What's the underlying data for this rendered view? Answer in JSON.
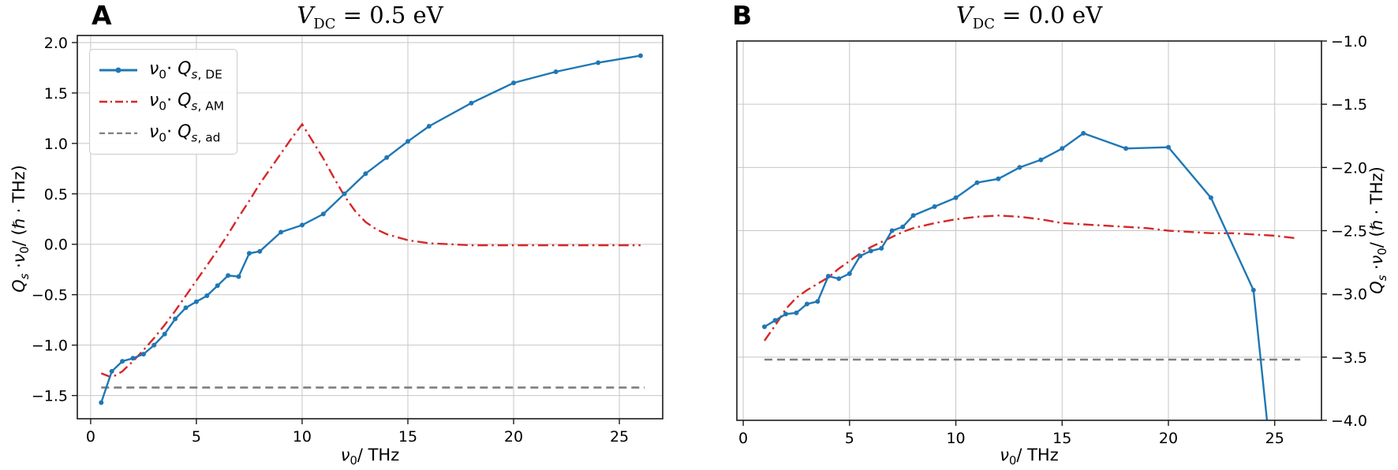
{
  "figure": {
    "panel_a": {
      "panel_letter": "A",
      "title": {
        "italic": "V",
        "sub": "DC",
        "rest": " = 0.5 eV"
      },
      "xlabel": {
        "nu": "ν",
        "sub": "0",
        "rest": "/ THz"
      },
      "ylabel": {
        "q": "Q",
        "q_sub": "s",
        "mid": " ·",
        "nu": "ν",
        "nu_sub": "0",
        "rest": "/ (ℏ · THz)"
      }
    },
    "panel_b": {
      "panel_letter": "B",
      "title": {
        "italic": "V",
        "sub": "DC",
        "rest": " = 0.0 eV"
      },
      "xlabel": {
        "nu": "ν",
        "sub": "0",
        "rest": "/ THz"
      },
      "ylabel": {
        "q": "Q",
        "q_sub": "s",
        "mid": " ·",
        "nu": "ν",
        "nu_sub": "0",
        "rest": "/ (ℏ · THz)"
      }
    },
    "legend": {
      "items": [
        {
          "nu": "ν",
          "nu_sub": "0",
          "dot": "· ",
          "q": "Q",
          "q_sub_italic": "s",
          "q_sub_roman": ", DE"
        },
        {
          "nu": "ν",
          "nu_sub": "0",
          "dot": "· ",
          "q": "Q",
          "q_sub_italic": "s",
          "q_sub_roman": ", AM"
        },
        {
          "nu": "ν",
          "nu_sub": "0",
          "dot": "· ",
          "q": "Q",
          "q_sub_italic": "s",
          "q_sub_roman": ", ad"
        }
      ]
    },
    "colors": {
      "blue": "#1f77b4",
      "red": "#d62728",
      "gray": "#7f7f7f",
      "grid": "#c6c6c6",
      "spine": "#1a1a1a"
    }
  },
  "chart_data": [
    {
      "type": "line",
      "panel": "A",
      "title": "V_DC = 0.5 eV",
      "xlabel": "nu_0 / THz",
      "ylabel": "Q_s * nu_0 / (hbar * THz)",
      "xlim": [
        -0.63,
        27.05
      ],
      "ylim": [
        -1.73,
        2.07
      ],
      "grid": true,
      "legend_position": "upper left",
      "xticks": [
        0,
        5,
        10,
        15,
        20,
        25
      ],
      "xtick_labels": [
        "0",
        "5",
        "10",
        "15",
        "20",
        "25"
      ],
      "yticks": [
        2.0,
        1.5,
        1.0,
        0.5,
        0.0,
        -0.5,
        -1.0,
        -1.5
      ],
      "ytick_labels": [
        "2.0",
        "1.5",
        "1.0",
        "0.5",
        "0.0",
        "−0.5",
        "−1.0",
        "−1.5"
      ],
      "ytick_side": "left",
      "series": [
        {
          "name": "nu0·Qs,DE",
          "color": "#1f77b4",
          "style": "solid-marker",
          "width": 2.4,
          "x": [
            0.5,
            1,
            1.5,
            2,
            2.5,
            3,
            3.5,
            4,
            4.5,
            5,
            5.5,
            6,
            6.5,
            7,
            7.5,
            8,
            9,
            10,
            11,
            12,
            13,
            14,
            15,
            16,
            18,
            20,
            22,
            24,
            26
          ],
          "y": [
            -1.57,
            -1.26,
            -1.16,
            -1.13,
            -1.09,
            -1.0,
            -0.89,
            -0.74,
            -0.63,
            -0.57,
            -0.51,
            -0.41,
            -0.31,
            -0.32,
            -0.09,
            -0.07,
            0.12,
            0.19,
            0.3,
            0.5,
            0.7,
            0.86,
            1.02,
            1.17,
            1.4,
            1.6,
            1.71,
            1.8,
            1.87
          ]
        },
        {
          "name": "nu0·Qs,AM",
          "color": "#d62728",
          "style": "dashdot",
          "width": 2.4,
          "x": [
            0.5,
            1,
            1.5,
            2,
            2.5,
            3,
            3.5,
            4,
            4.5,
            5,
            5.5,
            6,
            6.5,
            7,
            7.5,
            8,
            8.5,
            9,
            9.5,
            10,
            10.5,
            11,
            11.5,
            12,
            12.5,
            13,
            13.5,
            14,
            15,
            16,
            17,
            18,
            20,
            22,
            24,
            26
          ],
          "y": [
            -1.28,
            -1.32,
            -1.26,
            -1.16,
            -1.05,
            -0.93,
            -0.8,
            -0.66,
            -0.51,
            -0.36,
            -0.21,
            -0.06,
            0.1,
            0.27,
            0.43,
            0.6,
            0.75,
            0.9,
            1.05,
            1.19,
            1.02,
            0.85,
            0.66,
            0.48,
            0.33,
            0.22,
            0.15,
            0.1,
            0.04,
            0.01,
            0.0,
            -0.01,
            -0.01,
            -0.01,
            -0.01,
            -0.01
          ]
        },
        {
          "name": "nu0·Qs,ad",
          "color": "#7f7f7f",
          "style": "dashed",
          "width": 2.6,
          "x": [
            0.5,
            26.2
          ],
          "y": [
            -1.42,
            -1.42
          ]
        }
      ]
    },
    {
      "type": "line",
      "panel": "B",
      "title": "V_DC = 0.0 eV",
      "xlabel": "nu_0 / THz",
      "ylabel": "Q_s * nu_0 / (hbar * THz)",
      "xlim": [
        -0.3,
        27.2
      ],
      "ylim": [
        -4.0,
        -1.0
      ],
      "grid": true,
      "legend_position": "none",
      "xticks": [
        0,
        5,
        10,
        15,
        20,
        25
      ],
      "xtick_labels": [
        "0",
        "5",
        "10",
        "15",
        "20",
        "25"
      ],
      "yticks": [
        -1.0,
        -1.5,
        -2.0,
        -2.5,
        -3.0,
        -3.5,
        -4.0
      ],
      "ytick_labels": [
        "−1.0",
        "−1.5",
        "−2.0",
        "−2.5",
        "−3.0",
        "−3.5",
        "−4.0"
      ],
      "ytick_side": "right",
      "series": [
        {
          "name": "nu0·Qs,DE",
          "color": "#1f77b4",
          "style": "solid-marker",
          "width": 2.4,
          "x": [
            1,
            1.5,
            2,
            2.5,
            3,
            3.5,
            4,
            4.5,
            5,
            5.5,
            6,
            6.5,
            7,
            7.5,
            8,
            9,
            10,
            11,
            12,
            13,
            14,
            15,
            16,
            18,
            20,
            22,
            24,
            24.7
          ],
          "y": [
            -3.26,
            -3.21,
            -3.16,
            -3.15,
            -3.08,
            -3.06,
            -2.86,
            -2.88,
            -2.84,
            -2.7,
            -2.66,
            -2.64,
            -2.5,
            -2.47,
            -2.38,
            -2.31,
            -2.24,
            -2.12,
            -2.09,
            -2.0,
            -1.94,
            -1.85,
            -1.73,
            -1.85,
            -1.84,
            -2.24,
            -2.97,
            -4.1
          ]
        },
        {
          "name": "nu0·Qs,AM",
          "color": "#d62728",
          "style": "dashdot",
          "width": 2.4,
          "x": [
            1,
            1.5,
            2,
            2.5,
            3,
            3.5,
            4,
            4.5,
            5,
            5.5,
            6,
            6.5,
            7,
            7.5,
            8,
            9,
            10,
            11,
            12,
            13,
            14,
            15,
            16,
            17,
            18,
            19,
            20,
            21,
            22,
            23,
            24,
            25,
            26
          ],
          "y": [
            -3.37,
            -3.25,
            -3.12,
            -3.03,
            -2.97,
            -2.92,
            -2.87,
            -2.8,
            -2.74,
            -2.68,
            -2.63,
            -2.59,
            -2.55,
            -2.51,
            -2.48,
            -2.44,
            -2.41,
            -2.39,
            -2.38,
            -2.39,
            -2.41,
            -2.44,
            -2.45,
            -2.46,
            -2.47,
            -2.48,
            -2.5,
            -2.51,
            -2.52,
            -2.52,
            -2.53,
            -2.54,
            -2.56
          ]
        },
        {
          "name": "nu0·Qs,ad",
          "color": "#7f7f7f",
          "style": "dashed",
          "width": 2.6,
          "x": [
            1.0,
            26.2
          ],
          "y": [
            -3.52,
            -3.52
          ]
        }
      ]
    }
  ]
}
